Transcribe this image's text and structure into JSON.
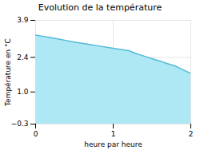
{
  "chart_data": {
    "type": "area",
    "title": "Evolution de la température",
    "x": [
      0,
      0.1,
      0.2,
      0.3,
      0.4,
      0.5,
      0.6,
      0.7,
      0.8,
      0.9,
      1.0,
      1.1,
      1.2,
      1.3,
      1.4,
      1.5,
      1.6,
      1.7,
      1.8,
      1.9,
      2.0
    ],
    "values": [
      3.3,
      3.25,
      3.2,
      3.14,
      3.08,
      3.02,
      2.97,
      2.92,
      2.87,
      2.82,
      2.77,
      2.72,
      2.67,
      2.55,
      2.45,
      2.35,
      2.25,
      2.15,
      2.05,
      1.9,
      1.75
    ],
    "xlabel": "heure par heure",
    "ylabel": "Température en °C",
    "colors": [
      "#aee8f5",
      "#55bbd8"
    ],
    "xlim": [
      0,
      2
    ],
    "xticks": [
      0,
      1,
      2
    ],
    "ylim": [
      -0.3,
      3.9
    ],
    "yticks": [
      {
        "value": -0.3,
        "label": "−0.3"
      },
      {
        "value": 1.0,
        "label": "1.0"
      },
      2.4,
      3.9
    ],
    "grid": true
  }
}
